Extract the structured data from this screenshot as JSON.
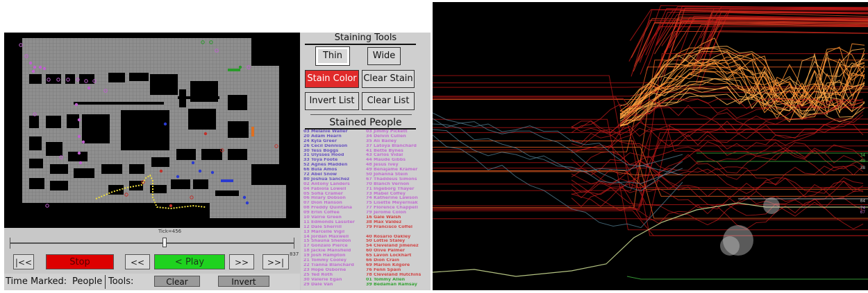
{
  "controls": {
    "tick_label": "Tick=456",
    "tick_max": "837",
    "tick_progress": 0.545,
    "btn_first": "|<<",
    "btn_stop": "Stop",
    "btn_back": "<<",
    "btn_play": "< Play",
    "btn_forward": ">>",
    "btn_last": ">>|"
  },
  "bottom_bar": {
    "time_marked_label": "Time Marked:",
    "people_label": "People",
    "tools_label": "Tools:",
    "clear_label": "Clear",
    "invert_label": "Invert"
  },
  "staining_tools": {
    "title": "Staining Tools",
    "thin": "Thin",
    "wide": "Wide",
    "stain_color": "Stain Color",
    "clear_stain": "Clear Stain",
    "invert_list": "Invert List",
    "clear_list": "Clear List"
  },
  "stained_people": {
    "title": "Stained People",
    "col1": [
      {
        "text": "03  Melanie Waller",
        "color": "#6a55c0"
      },
      {
        "text": "20  Adam Hearn",
        "color": "#6a55c0"
      },
      {
        "text": "24  Kyla Greer",
        "color": "#6a55c0"
      },
      {
        "text": "26  Cecil Dennison",
        "color": "#6a55c0"
      },
      {
        "text": "30  Tess Boggs",
        "color": "#6a55c0"
      },
      {
        "text": "31  Ulysses Hood",
        "color": "#6a55c0"
      },
      {
        "text": "33  Toya Foote",
        "color": "#6a55c0"
      },
      {
        "text": "52  Agnes Madden",
        "color": "#6a55c0"
      },
      {
        "text": "66  Bula Amos",
        "color": "#6a55c0"
      },
      {
        "text": "72  Abel Snow",
        "color": "#6a55c0"
      },
      {
        "text": "80  Joshua Sanchez",
        "color": "#6a55c0"
      },
      {
        "text": "02  Antony Landers",
        "color": "#c070d0"
      },
      {
        "text": "04  Fabiola Lowell",
        "color": "#c070d0"
      },
      {
        "text": "05  Sofia Cramer",
        "color": "#c070d0"
      },
      {
        "text": "06  Hilary Dobson",
        "color": "#c070d0"
      },
      {
        "text": "07  Dion Hanson",
        "color": "#c070d0"
      },
      {
        "text": "08  Freddy Quintana",
        "color": "#c070d0"
      },
      {
        "text": "09  Erlin Coffee",
        "color": "#c070d0"
      },
      {
        "text": "10  Valrie Green",
        "color": "#c070d0"
      },
      {
        "text": "11  Edmonds Lassiter",
        "color": "#c070d0"
      },
      {
        "text": "12  Dale Sherrill",
        "color": "#c070d0"
      },
      {
        "text": "13  Marcelle Vigil",
        "color": "#c070d0"
      },
      {
        "text": "14  Jordan Maxwell",
        "color": "#c070d0"
      },
      {
        "text": "15  Shauna Sheldon",
        "color": "#c070d0"
      },
      {
        "text": "17  Gonzalo Pierce",
        "color": "#c070d0"
      },
      {
        "text": "18  Jackie Mansfield",
        "color": "#c070d0"
      },
      {
        "text": "19  Josh Hampton",
        "color": "#c070d0"
      },
      {
        "text": "21  Tommy Cooley",
        "color": "#c070d0"
      },
      {
        "text": "22  Tianna Blanchard",
        "color": "#c070d0"
      },
      {
        "text": "23  Hope Osborne",
        "color": "#c070d0"
      },
      {
        "text": "25  Ted Roth",
        "color": "#c070d0"
      },
      {
        "text": "30  Valerie Egan",
        "color": "#c070d0"
      },
      {
        "text": "29  Dale Van",
        "color": "#c070d0"
      }
    ],
    "col2": [
      {
        "text": "03  Jimmy Pickett",
        "color": "#c070d0"
      },
      {
        "text": "34  Delvin Cullen",
        "color": "#c070d0"
      },
      {
        "text": "35  Ali Bailey",
        "color": "#c070d0"
      },
      {
        "text": "37  Latoya Blanchard",
        "color": "#c070d0"
      },
      {
        "text": "41  Bette Bynes",
        "color": "#c070d0"
      },
      {
        "text": "43  Carlos Vidal",
        "color": "#c070d0"
      },
      {
        "text": "44  Maude Gibbs",
        "color": "#c070d0"
      },
      {
        "text": "48  Jesus Ivey",
        "color": "#c070d0"
      },
      {
        "text": "49  Benajame Kramer",
        "color": "#c070d0"
      },
      {
        "text": "50  Johanna Stein",
        "color": "#c070d0"
      },
      {
        "text": "67  Thaddeus Simons",
        "color": "#c070d0"
      },
      {
        "text": "70  Blanch Vernon",
        "color": "#c070d0"
      },
      {
        "text": "71  Ingeborg Thayer",
        "color": "#c070d0"
      },
      {
        "text": "73  Mabel Coffey",
        "color": "#c070d0"
      },
      {
        "text": "74  Katherine Lawson",
        "color": "#c070d0"
      },
      {
        "text": "75  Lisette Meyerniak",
        "color": "#c070d0"
      },
      {
        "text": "77  Florence Chappell",
        "color": "#c070d0"
      },
      {
        "text": "79  Jerome Colon",
        "color": "#c070d0"
      },
      {
        "text": "16  Gale Walsh",
        "color": "#d04848"
      },
      {
        "text": "38  Max Valdez",
        "color": "#d04848"
      },
      {
        "text": "79  Francisco Coffel",
        "color": "#d04848"
      },
      {
        "text": "  ",
        "color": "#d04848"
      },
      {
        "text": "40  Rosario Oakley",
        "color": "#d04848"
      },
      {
        "text": "50  Lottie Staley",
        "color": "#d04848"
      },
      {
        "text": "54  Cleveland Jimenez",
        "color": "#d04848"
      },
      {
        "text": "60  Olive Palmer",
        "color": "#d04848"
      },
      {
        "text": "65  Lavon Lockhart",
        "color": "#d04848"
      },
      {
        "text": "66  Dion Crain",
        "color": "#d04848"
      },
      {
        "text": "69  Marlon Kilgore",
        "color": "#d04848"
      },
      {
        "text": "76  Fenn Spain",
        "color": "#d04848"
      },
      {
        "text": "78  Cleveland Hutchins",
        "color": "#d04848"
      },
      {
        "text": "01  Tommy Allen",
        "color": "#3aa53a"
      },
      {
        "text": "39  Bedaman Ramsay",
        "color": "#3aa53a"
      }
    ]
  },
  "trace_labels": [
    {
      "text": "34",
      "color": "#55cc55"
    },
    {
      "text": "40",
      "color": "#55cc55"
    },
    {
      "text": "38",
      "color": "#c8c8c8"
    },
    {
      "text": "04",
      "color": "#c8c8c8"
    },
    {
      "text": "74",
      "color": "#c070d0"
    },
    {
      "text": "67",
      "color": "#c070d0"
    }
  ],
  "colors": {
    "map_floor": "#8f8f8f",
    "map_wall": "#000000",
    "panel_bg": "#c8c8c8",
    "trace_bg": "#000000"
  }
}
